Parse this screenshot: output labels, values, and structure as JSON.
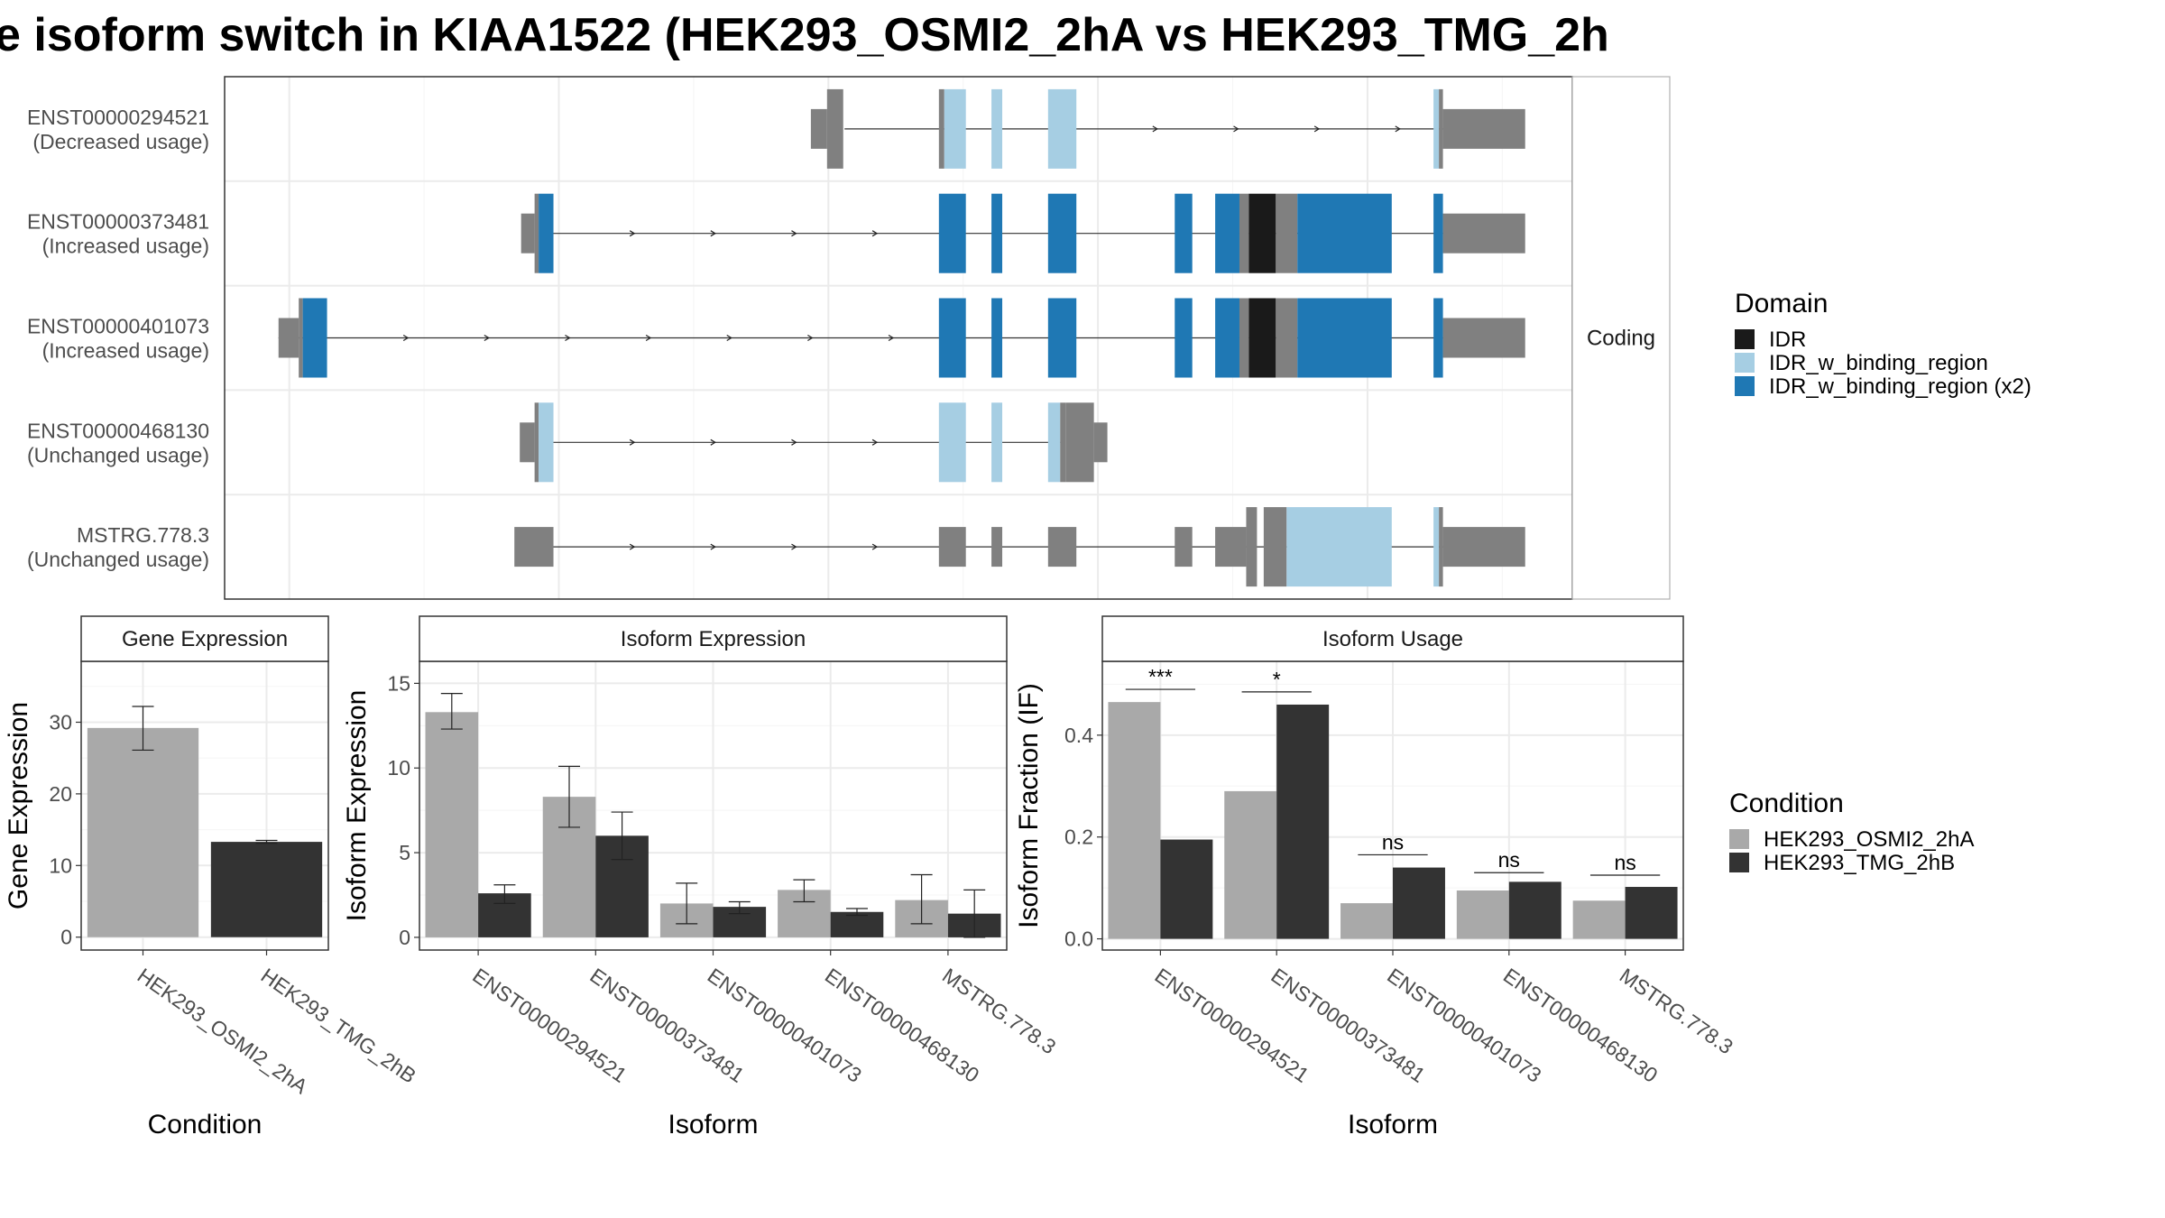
{
  "title": "e isoform switch in KIAA1522 (HEK293_OSMI2_2hA vs HEK293_TMG_2h",
  "colors": {
    "IDR": "#1a1a1a",
    "IDR_w_binding_region": "#a6cee3",
    "IDR_w_binding_region (x2)": "#1f78b4",
    "none": "#808080",
    "cond1": "#a9a9a9",
    "cond2": "#333333",
    "grid": "#ebebeb",
    "text": "#4d4d4d"
  },
  "facet_label": "Coding",
  "domain_legend": {
    "title": "Domain",
    "items": [
      {
        "label": "IDR",
        "key": "IDR"
      },
      {
        "label": "IDR_w_binding_region",
        "key": "IDR_w_binding_region"
      },
      {
        "label": "IDR_w_binding_region (x2)",
        "key": "IDR_w_binding_region (x2)"
      }
    ]
  },
  "condition_legend": {
    "title": "Condition",
    "items": [
      {
        "label": "HEK293_OSMI2_2hA",
        "key": "cond1"
      },
      {
        "label": "HEK293_TMG_2hB",
        "key": "cond2"
      }
    ]
  },
  "chart_data": [
    {
      "type": "gene-structure",
      "x_range": [
        0,
        100
      ],
      "transcripts": [
        {
          "id": "ENST00000294521",
          "status": "(Decreased usage)",
          "span": [
            46,
            92
          ],
          "exons": [
            {
              "s": 43.5,
              "e": 44.7,
              "h": "utr",
              "c": "none"
            },
            {
              "s": 44.7,
              "e": 45.9,
              "h": "cds",
              "c": "none"
            },
            {
              "s": 53.0,
              "e": 53.4,
              "h": "cds",
              "c": "none"
            },
            {
              "s": 53.4,
              "e": 55.0,
              "h": "cds",
              "c": "IDR_w_binding_region"
            },
            {
              "s": 56.9,
              "e": 57.7,
              "h": "cds",
              "c": "IDR_w_binding_region"
            },
            {
              "s": 61.1,
              "e": 63.2,
              "h": "cds",
              "c": "IDR_w_binding_region"
            },
            {
              "s": 89.7,
              "e": 90.1,
              "h": "cds",
              "c": "IDR_w_binding_region"
            },
            {
              "s": 90.1,
              "e": 90.4,
              "h": "cds",
              "c": "none"
            },
            {
              "s": 90.4,
              "e": 96.5,
              "h": "utr",
              "c": "none"
            }
          ]
        },
        {
          "id": "ENST00000373481",
          "status": "(Increased usage)",
          "span": [
            24,
            92
          ],
          "exons": [
            {
              "s": 22.0,
              "e": 23.0,
              "h": "utr",
              "c": "none"
            },
            {
              "s": 23.0,
              "e": 23.3,
              "h": "cds",
              "c": "none"
            },
            {
              "s": 23.3,
              "e": 24.4,
              "h": "cds",
              "c": "IDR_w_binding_region (x2)"
            },
            {
              "s": 53.0,
              "e": 55.0,
              "h": "cds",
              "c": "IDR_w_binding_region (x2)"
            },
            {
              "s": 56.9,
              "e": 57.7,
              "h": "cds",
              "c": "IDR_w_binding_region (x2)"
            },
            {
              "s": 61.1,
              "e": 63.2,
              "h": "cds",
              "c": "IDR_w_binding_region (x2)"
            },
            {
              "s": 70.5,
              "e": 71.8,
              "h": "cds",
              "c": "IDR_w_binding_region (x2)"
            },
            {
              "s": 73.5,
              "e": 75.3,
              "h": "cds",
              "c": "IDR_w_binding_region (x2)"
            },
            {
              "s": 75.3,
              "e": 76.0,
              "h": "cds",
              "c": "none"
            },
            {
              "s": 76.0,
              "e": 78.0,
              "h": "cds",
              "c": "IDR"
            },
            {
              "s": 78.0,
              "e": 79.6,
              "h": "cds",
              "c": "none"
            },
            {
              "s": 79.6,
              "e": 86.6,
              "h": "cds",
              "c": "IDR_w_binding_region (x2)"
            },
            {
              "s": 89.7,
              "e": 90.4,
              "h": "cds",
              "c": "IDR_w_binding_region (x2)"
            },
            {
              "s": 90.4,
              "e": 96.5,
              "h": "utr",
              "c": "none"
            }
          ]
        },
        {
          "id": "ENST00000401073",
          "status": "(Increased usage)",
          "span": [
            4,
            92
          ],
          "exons": [
            {
              "s": 4.0,
              "e": 5.5,
              "h": "utr",
              "c": "none"
            },
            {
              "s": 5.5,
              "e": 5.8,
              "h": "cds",
              "c": "none"
            },
            {
              "s": 5.8,
              "e": 7.6,
              "h": "cds",
              "c": "IDR_w_binding_region (x2)"
            },
            {
              "s": 53.0,
              "e": 55.0,
              "h": "cds",
              "c": "IDR_w_binding_region (x2)"
            },
            {
              "s": 56.9,
              "e": 57.7,
              "h": "cds",
              "c": "IDR_w_binding_region (x2)"
            },
            {
              "s": 61.1,
              "e": 63.2,
              "h": "cds",
              "c": "IDR_w_binding_region (x2)"
            },
            {
              "s": 70.5,
              "e": 71.8,
              "h": "cds",
              "c": "IDR_w_binding_region (x2)"
            },
            {
              "s": 73.5,
              "e": 75.3,
              "h": "cds",
              "c": "IDR_w_binding_region (x2)"
            },
            {
              "s": 75.3,
              "e": 76.0,
              "h": "cds",
              "c": "none"
            },
            {
              "s": 76.0,
              "e": 78.0,
              "h": "cds",
              "c": "IDR"
            },
            {
              "s": 78.0,
              "e": 79.6,
              "h": "cds",
              "c": "none"
            },
            {
              "s": 79.6,
              "e": 86.6,
              "h": "cds",
              "c": "IDR_w_binding_region (x2)"
            },
            {
              "s": 89.7,
              "e": 90.4,
              "h": "cds",
              "c": "IDR_w_binding_region (x2)"
            },
            {
              "s": 90.4,
              "e": 96.5,
              "h": "utr",
              "c": "none"
            }
          ]
        },
        {
          "id": "ENST00000468130",
          "status": "(Unchanged usage)",
          "span": [
            24,
            62
          ],
          "exons": [
            {
              "s": 21.9,
              "e": 23.0,
              "h": "utr",
              "c": "none"
            },
            {
              "s": 23.0,
              "e": 23.3,
              "h": "cds",
              "c": "none"
            },
            {
              "s": 23.3,
              "e": 24.4,
              "h": "cds",
              "c": "IDR_w_binding_region"
            },
            {
              "s": 53.0,
              "e": 55.0,
              "h": "cds",
              "c": "IDR_w_binding_region"
            },
            {
              "s": 56.9,
              "e": 57.7,
              "h": "cds",
              "c": "IDR_w_binding_region"
            },
            {
              "s": 61.1,
              "e": 62.0,
              "h": "cds",
              "c": "IDR_w_binding_region"
            },
            {
              "s": 62.0,
              "e": 62.4,
              "h": "cds",
              "c": "none"
            },
            {
              "s": 62.4,
              "e": 64.5,
              "h": "cds",
              "c": "none"
            },
            {
              "s": 64.5,
              "e": 65.5,
              "h": "utr",
              "c": "none"
            }
          ]
        },
        {
          "id": "MSTRG.778.3",
          "status": "(Unchanged usage)",
          "span": [
            24,
            92
          ],
          "exons": [
            {
              "s": 21.5,
              "e": 24.4,
              "h": "noncoding",
              "c": "none"
            },
            {
              "s": 53.0,
              "e": 55.0,
              "h": "noncoding",
              "c": "none"
            },
            {
              "s": 56.9,
              "e": 57.7,
              "h": "noncoding",
              "c": "none"
            },
            {
              "s": 61.1,
              "e": 63.2,
              "h": "noncoding",
              "c": "none"
            },
            {
              "s": 70.5,
              "e": 71.8,
              "h": "noncoding",
              "c": "none"
            },
            {
              "s": 73.5,
              "e": 75.8,
              "h": "noncoding",
              "c": "none"
            },
            {
              "s": 75.8,
              "e": 76.6,
              "h": "cds",
              "c": "none"
            },
            {
              "s": 77.1,
              "e": 78.8,
              "h": "cds",
              "c": "none"
            },
            {
              "s": 78.8,
              "e": 86.6,
              "h": "cds",
              "c": "IDR_w_binding_region"
            },
            {
              "s": 89.7,
              "e": 90.1,
              "h": "cds",
              "c": "IDR_w_binding_region"
            },
            {
              "s": 90.1,
              "e": 90.4,
              "h": "cds",
              "c": "none"
            },
            {
              "s": 90.4,
              "e": 96.5,
              "h": "utr",
              "c": "none"
            }
          ]
        }
      ]
    },
    {
      "type": "bar",
      "title": "Gene Expression",
      "xlabel": "Condition",
      "ylabel": "Gene Expression",
      "ylim": [
        -1.8,
        38.5
      ],
      "yticks": [
        0,
        10,
        20,
        30
      ],
      "categories": [
        "HEK293_OSMI2_2hA",
        "HEK293_TMG_2hB"
      ],
      "series": [
        {
          "key": "cond1",
          "values": [
            29.2,
            null
          ],
          "err_low": [
            26.1,
            null
          ],
          "err_high": [
            32.2,
            null
          ]
        },
        {
          "key": "cond2",
          "values": [
            null,
            13.3
          ],
          "err_low": [
            null,
            13.1
          ],
          "err_high": [
            null,
            13.5
          ]
        }
      ]
    },
    {
      "type": "bar",
      "title": "Isoform Expression",
      "xlabel": "Isoform",
      "ylabel": "Isoform Expression",
      "ylim": [
        -0.75,
        16.3
      ],
      "yticks": [
        0,
        5,
        10,
        15
      ],
      "categories": [
        "ENST00000294521",
        "ENST00000373481",
        "ENST00000401073",
        "ENST00000468130",
        "MSTRG.778.3"
      ],
      "series": [
        {
          "key": "cond1",
          "values": [
            13.3,
            8.3,
            2.0,
            2.8,
            2.2
          ],
          "err_low": [
            12.3,
            6.5,
            0.8,
            2.1,
            0.8
          ],
          "err_high": [
            14.4,
            10.1,
            3.2,
            3.4,
            3.7
          ]
        },
        {
          "key": "cond2",
          "values": [
            2.6,
            6.0,
            1.8,
            1.5,
            1.4
          ],
          "err_low": [
            2.0,
            4.6,
            1.4,
            1.3,
            0.0
          ],
          "err_high": [
            3.1,
            7.4,
            2.1,
            1.7,
            2.8
          ]
        }
      ]
    },
    {
      "type": "bar",
      "title": "Isoform Usage",
      "xlabel": "Isoform",
      "ylabel": "Isoform Fraction (IF)",
      "ylim": [
        -0.022,
        0.545
      ],
      "yticks": [
        0.0,
        0.2,
        0.4
      ],
      "ytick_labels": [
        "0.0",
        "0.2",
        "0.4"
      ],
      "categories": [
        "ENST00000294521",
        "ENST00000373481",
        "ENST00000401073",
        "ENST00000468130",
        "MSTRG.778.3"
      ],
      "series": [
        {
          "key": "cond1",
          "values": [
            0.465,
            0.29,
            0.07,
            0.095,
            0.075
          ]
        },
        {
          "key": "cond2",
          "values": [
            0.195,
            0.46,
            0.14,
            0.112,
            0.102
          ]
        }
      ],
      "significance": [
        {
          "label": "***",
          "y": 0.49
        },
        {
          "label": "*",
          "y": 0.485
        },
        {
          "label": "ns",
          "y": 0.165
        },
        {
          "label": "ns",
          "y": 0.13
        },
        {
          "label": "ns",
          "y": 0.125
        }
      ]
    }
  ]
}
